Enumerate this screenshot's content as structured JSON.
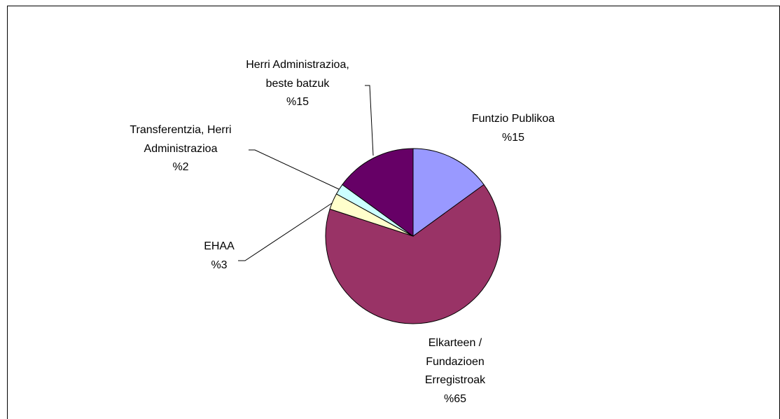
{
  "chart_data": {
    "type": "pie",
    "categories": [
      "Funtzio Publikoa",
      "Elkarteen / Fundazioen Erregistroak",
      "EHAA",
      "Transferentzia, Herri Administrazioa",
      "Herri Administrazioa, beste batzuk"
    ],
    "values": [
      15,
      65,
      3,
      2,
      15
    ],
    "value_labels": [
      "%15",
      "%65",
      "%3",
      "%2",
      "%15"
    ],
    "colors": [
      "#9999ff",
      "#993366",
      "#ffffcc",
      "#ccffff",
      "#660066"
    ]
  }
}
